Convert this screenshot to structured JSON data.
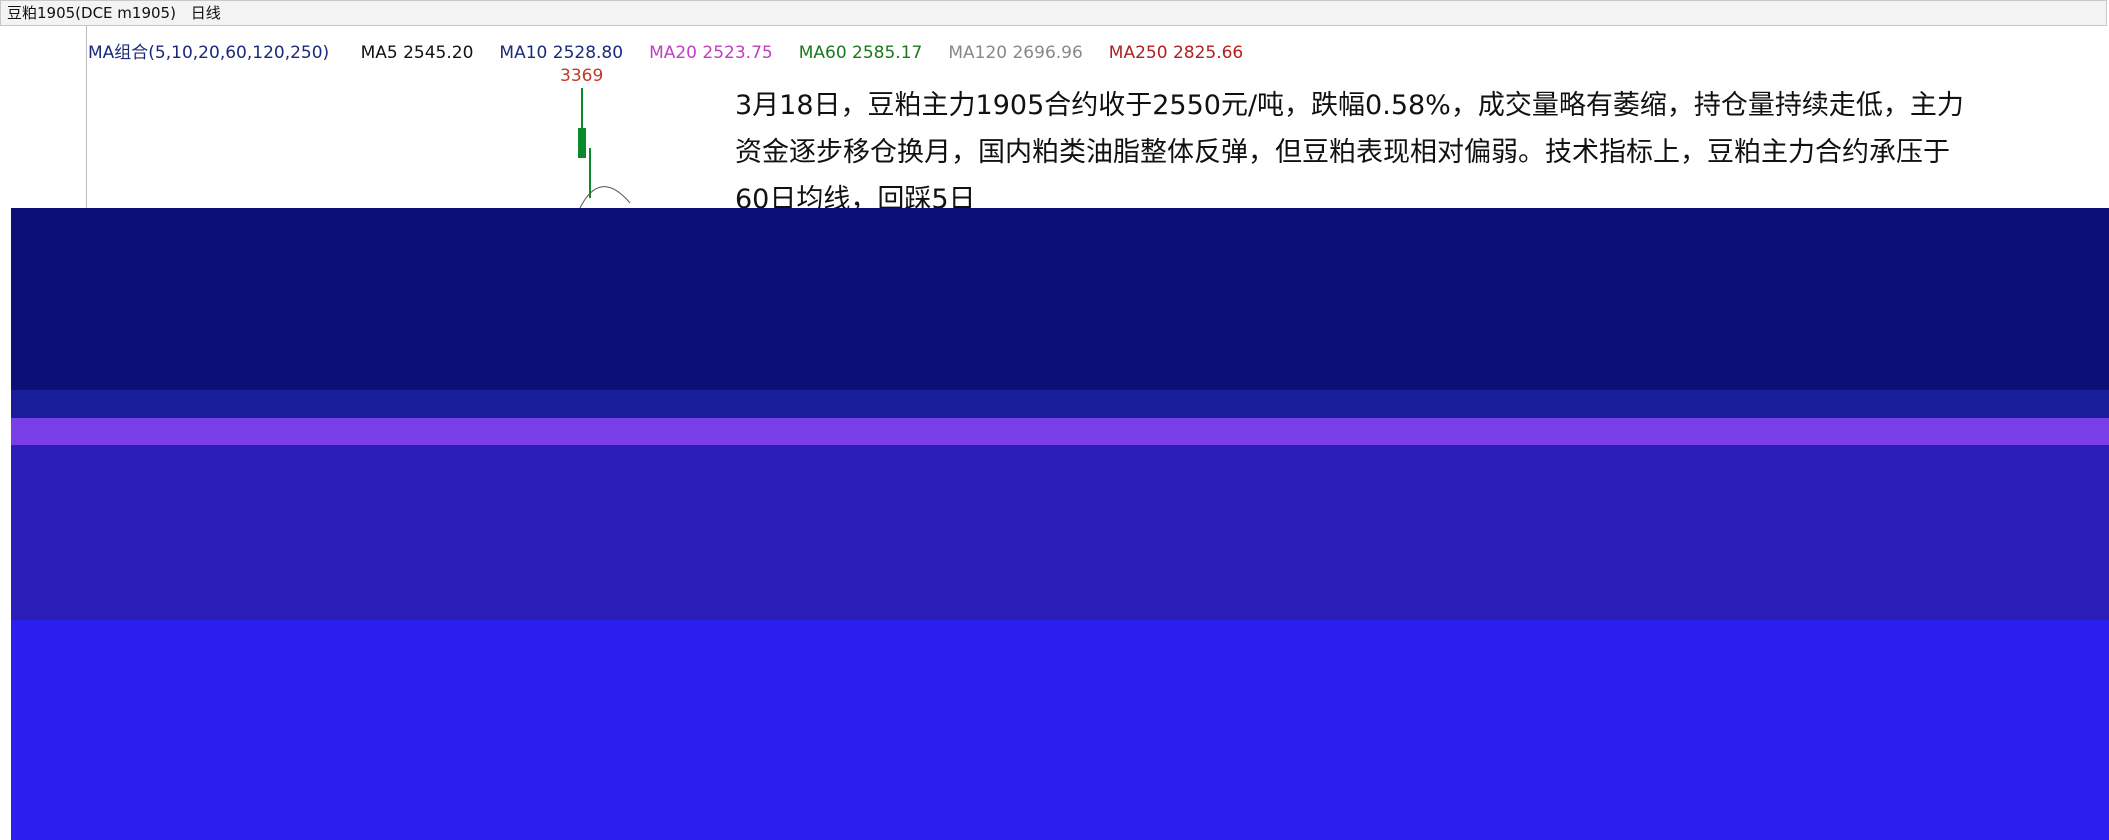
{
  "header": {
    "title": "豆粕1905(DCE m1905)",
    "period": "日线"
  },
  "indicators": {
    "group": "MA组合(5,10,20,60,120,250)",
    "items": [
      {
        "label": "MA5 2545.20",
        "color": "#111111"
      },
      {
        "label": "MA10 2528.80",
        "color": "#1a2a7a"
      },
      {
        "label": "MA20 2523.75",
        "color": "#c040c0"
      },
      {
        "label": "MA60 2585.17",
        "color": "#1a7a1a"
      },
      {
        "label": "MA120 2696.96",
        "color": "#888888"
      },
      {
        "label": "MA250 2825.66",
        "color": "#b02020"
      }
    ]
  },
  "chart": {
    "peak_label": "3369"
  },
  "commentary": {
    "lines": [
      "3月18日，豆粕主力1905合约收于2550元/吨，跌幅0.58%，成交量略有萎缩，持仓量持续走低，主力",
      "资金逐步移仓换月，国内粕类油脂整体反弹，但豆粕表现相对偏弱。技术指标上，豆粕主力合约承压于",
      "60日均线，回踩5日"
    ]
  }
}
